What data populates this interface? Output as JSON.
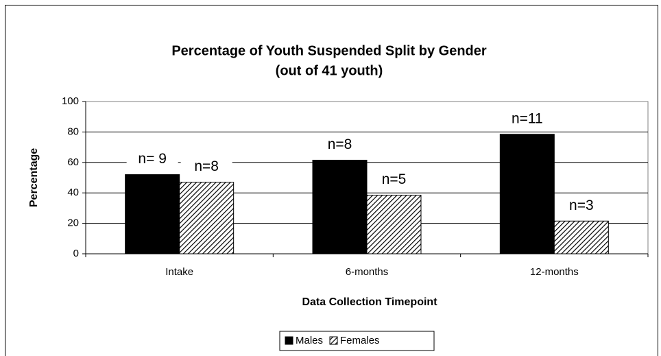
{
  "chart_data": {
    "type": "bar",
    "title": "Percentage of Youth Suspended Split by Gender",
    "subtitle": "(out of 41 youth)",
    "x_label": "Data Collection Timepoint",
    "y_label": "Percentage",
    "categories": [
      "Intake",
      "6-months",
      "12-months"
    ],
    "series": [
      {
        "name": "Males",
        "color": "#000000",
        "values": [
          52,
          61.5,
          78.5
        ],
        "annotations": [
          "n= 9",
          "n=8",
          "n=11"
        ]
      },
      {
        "name": "Females",
        "color": "hatch",
        "values": [
          47,
          38.5,
          21.5
        ],
        "annotations": [
          "n=8",
          "n=5",
          "n=3"
        ]
      }
    ],
    "ylim": [
      0,
      100
    ],
    "yticks": [
      0,
      20,
      40,
      60,
      80,
      100
    ],
    "grid": true,
    "legend": "bottom"
  }
}
